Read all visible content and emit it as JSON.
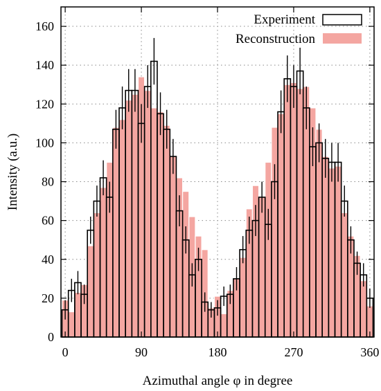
{
  "chart_data": {
    "type": "bar",
    "xlabel": "Azimuthal angle φ in degree",
    "ylabel": "Intensity (a.u.)",
    "xlim": [
      -5,
      365
    ],
    "ylim": [
      0,
      170
    ],
    "xticks": [
      "0",
      "90",
      "180",
      "270",
      "360"
    ],
    "xtick_values": [
      0,
      90,
      180,
      270,
      360
    ],
    "yticks": [
      "0",
      "20",
      "40",
      "60",
      "80",
      "100",
      "120",
      "140",
      "160"
    ],
    "ytick_values": [
      0,
      20,
      40,
      60,
      80,
      100,
      120,
      140,
      160
    ],
    "grid": true,
    "legend_position": "top-right",
    "bin_width": 7.5,
    "x": [
      0,
      7.5,
      15,
      22.5,
      30,
      37.5,
      45,
      52.5,
      60,
      67.5,
      75,
      82.5,
      90,
      97.5,
      105,
      112.5,
      120,
      127.5,
      135,
      142.5,
      150,
      157.5,
      165,
      172.5,
      180,
      187.5,
      195,
      202.5,
      210,
      217.5,
      225,
      232.5,
      240,
      247.5,
      255,
      262.5,
      270,
      277.5,
      285,
      292.5,
      300,
      307.5,
      315,
      322.5,
      330,
      337.5,
      345,
      352.5,
      360
    ],
    "series": [
      {
        "name": "Experiment",
        "style": "outline-with-errorbars",
        "color": "#000000",
        "values": [
          14,
          24,
          28,
          22,
          55,
          70,
          82,
          72,
          107,
          118,
          127,
          127,
          110,
          129,
          142,
          115,
          107,
          93,
          65,
          50,
          32,
          40,
          18,
          14,
          15,
          21,
          22,
          30,
          45,
          55,
          60,
          72,
          58,
          80,
          116,
          133,
          129,
          137,
          118,
          98,
          100,
          92,
          90,
          90,
          70,
          50,
          38,
          32,
          20
        ],
        "errors": [
          5,
          6,
          6,
          5,
          7,
          8,
          9,
          8,
          10,
          11,
          11,
          11,
          10,
          11,
          12,
          11,
          10,
          9,
          8,
          7,
          6,
          6,
          5,
          4,
          4,
          5,
          5,
          6,
          7,
          7,
          8,
          8,
          8,
          9,
          11,
          12,
          11,
          12,
          11,
          10,
          10,
          10,
          10,
          10,
          8,
          7,
          6,
          6,
          5
        ]
      },
      {
        "name": "Reconstruction",
        "style": "filled",
        "color": "#f4a6a1",
        "values": [
          19,
          13,
          23,
          27,
          47,
          64,
          77,
          90,
          108,
          112,
          122,
          125,
          134,
          127,
          118,
          116,
          109,
          93,
          82,
          75,
          62,
          52,
          45,
          15,
          21,
          12,
          24,
          30,
          41,
          66,
          78,
          72,
          90,
          108,
          115,
          130,
          131,
          128,
          129,
          118,
          107,
          93,
          87,
          88,
          64,
          52,
          42,
          29,
          16
        ]
      }
    ]
  }
}
